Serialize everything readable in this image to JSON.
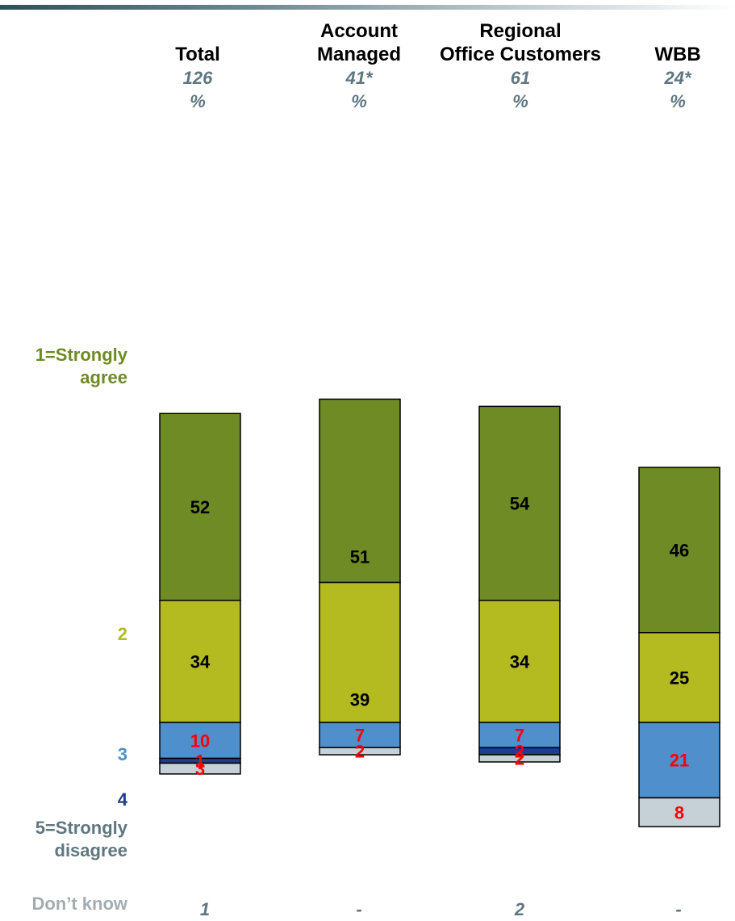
{
  "colors": {
    "strongly_agree": "#6e8b25",
    "agree": "#b3bb21",
    "neutral": "#4f8fcc",
    "disagree": "#1f3c8f",
    "strongly_disagree": "#c5d1d6",
    "label_red": "#ff0000",
    "label_black": "#000000",
    "base_text": "#5f7780"
  },
  "columns": [
    {
      "name_line1": "",
      "name_line2": "Total",
      "base": "126",
      "unit": "%",
      "dont_know": "1"
    },
    {
      "name_line1": "Account",
      "name_line2": "Managed",
      "base": "41*",
      "unit": "%",
      "dont_know": "-"
    },
    {
      "name_line1": "Regional",
      "name_line2": "Office Customers",
      "base": "61",
      "unit": "%",
      "dont_know": "2"
    },
    {
      "name_line1": "",
      "name_line2": "WBB",
      "base": "24*",
      "unit": "%",
      "dont_know": "-"
    }
  ],
  "row_labels": {
    "strongly_agree_1": "1=Strongly",
    "strongly_agree_2": "agree",
    "agree": "2",
    "neutral": "3",
    "disagree": "4",
    "strongly_disagree_1": "5=Strongly",
    "strongly_disagree_2": "disagree",
    "dont_know": "Don’t know"
  },
  "chart_data": {
    "type": "bar",
    "stacked": true,
    "categories": [
      "Total",
      "Account Managed",
      "Regional Office Customers",
      "WBB"
    ],
    "series": [
      {
        "name": "1=Strongly agree",
        "values": [
          52,
          51,
          54,
          46
        ]
      },
      {
        "name": "2",
        "values": [
          34,
          39,
          34,
          25
        ]
      },
      {
        "name": "3",
        "values": [
          10,
          7,
          7,
          21
        ]
      },
      {
        "name": "4",
        "values": [
          1,
          null,
          2,
          null
        ]
      },
      {
        "name": "5=Strongly disagree",
        "values": [
          3,
          2,
          2,
          8
        ]
      }
    ],
    "dont_know": [
      "1",
      "-",
      "2",
      "-"
    ],
    "bases": [
      "126",
      "41*",
      "61",
      "24*"
    ],
    "unit": "%"
  }
}
